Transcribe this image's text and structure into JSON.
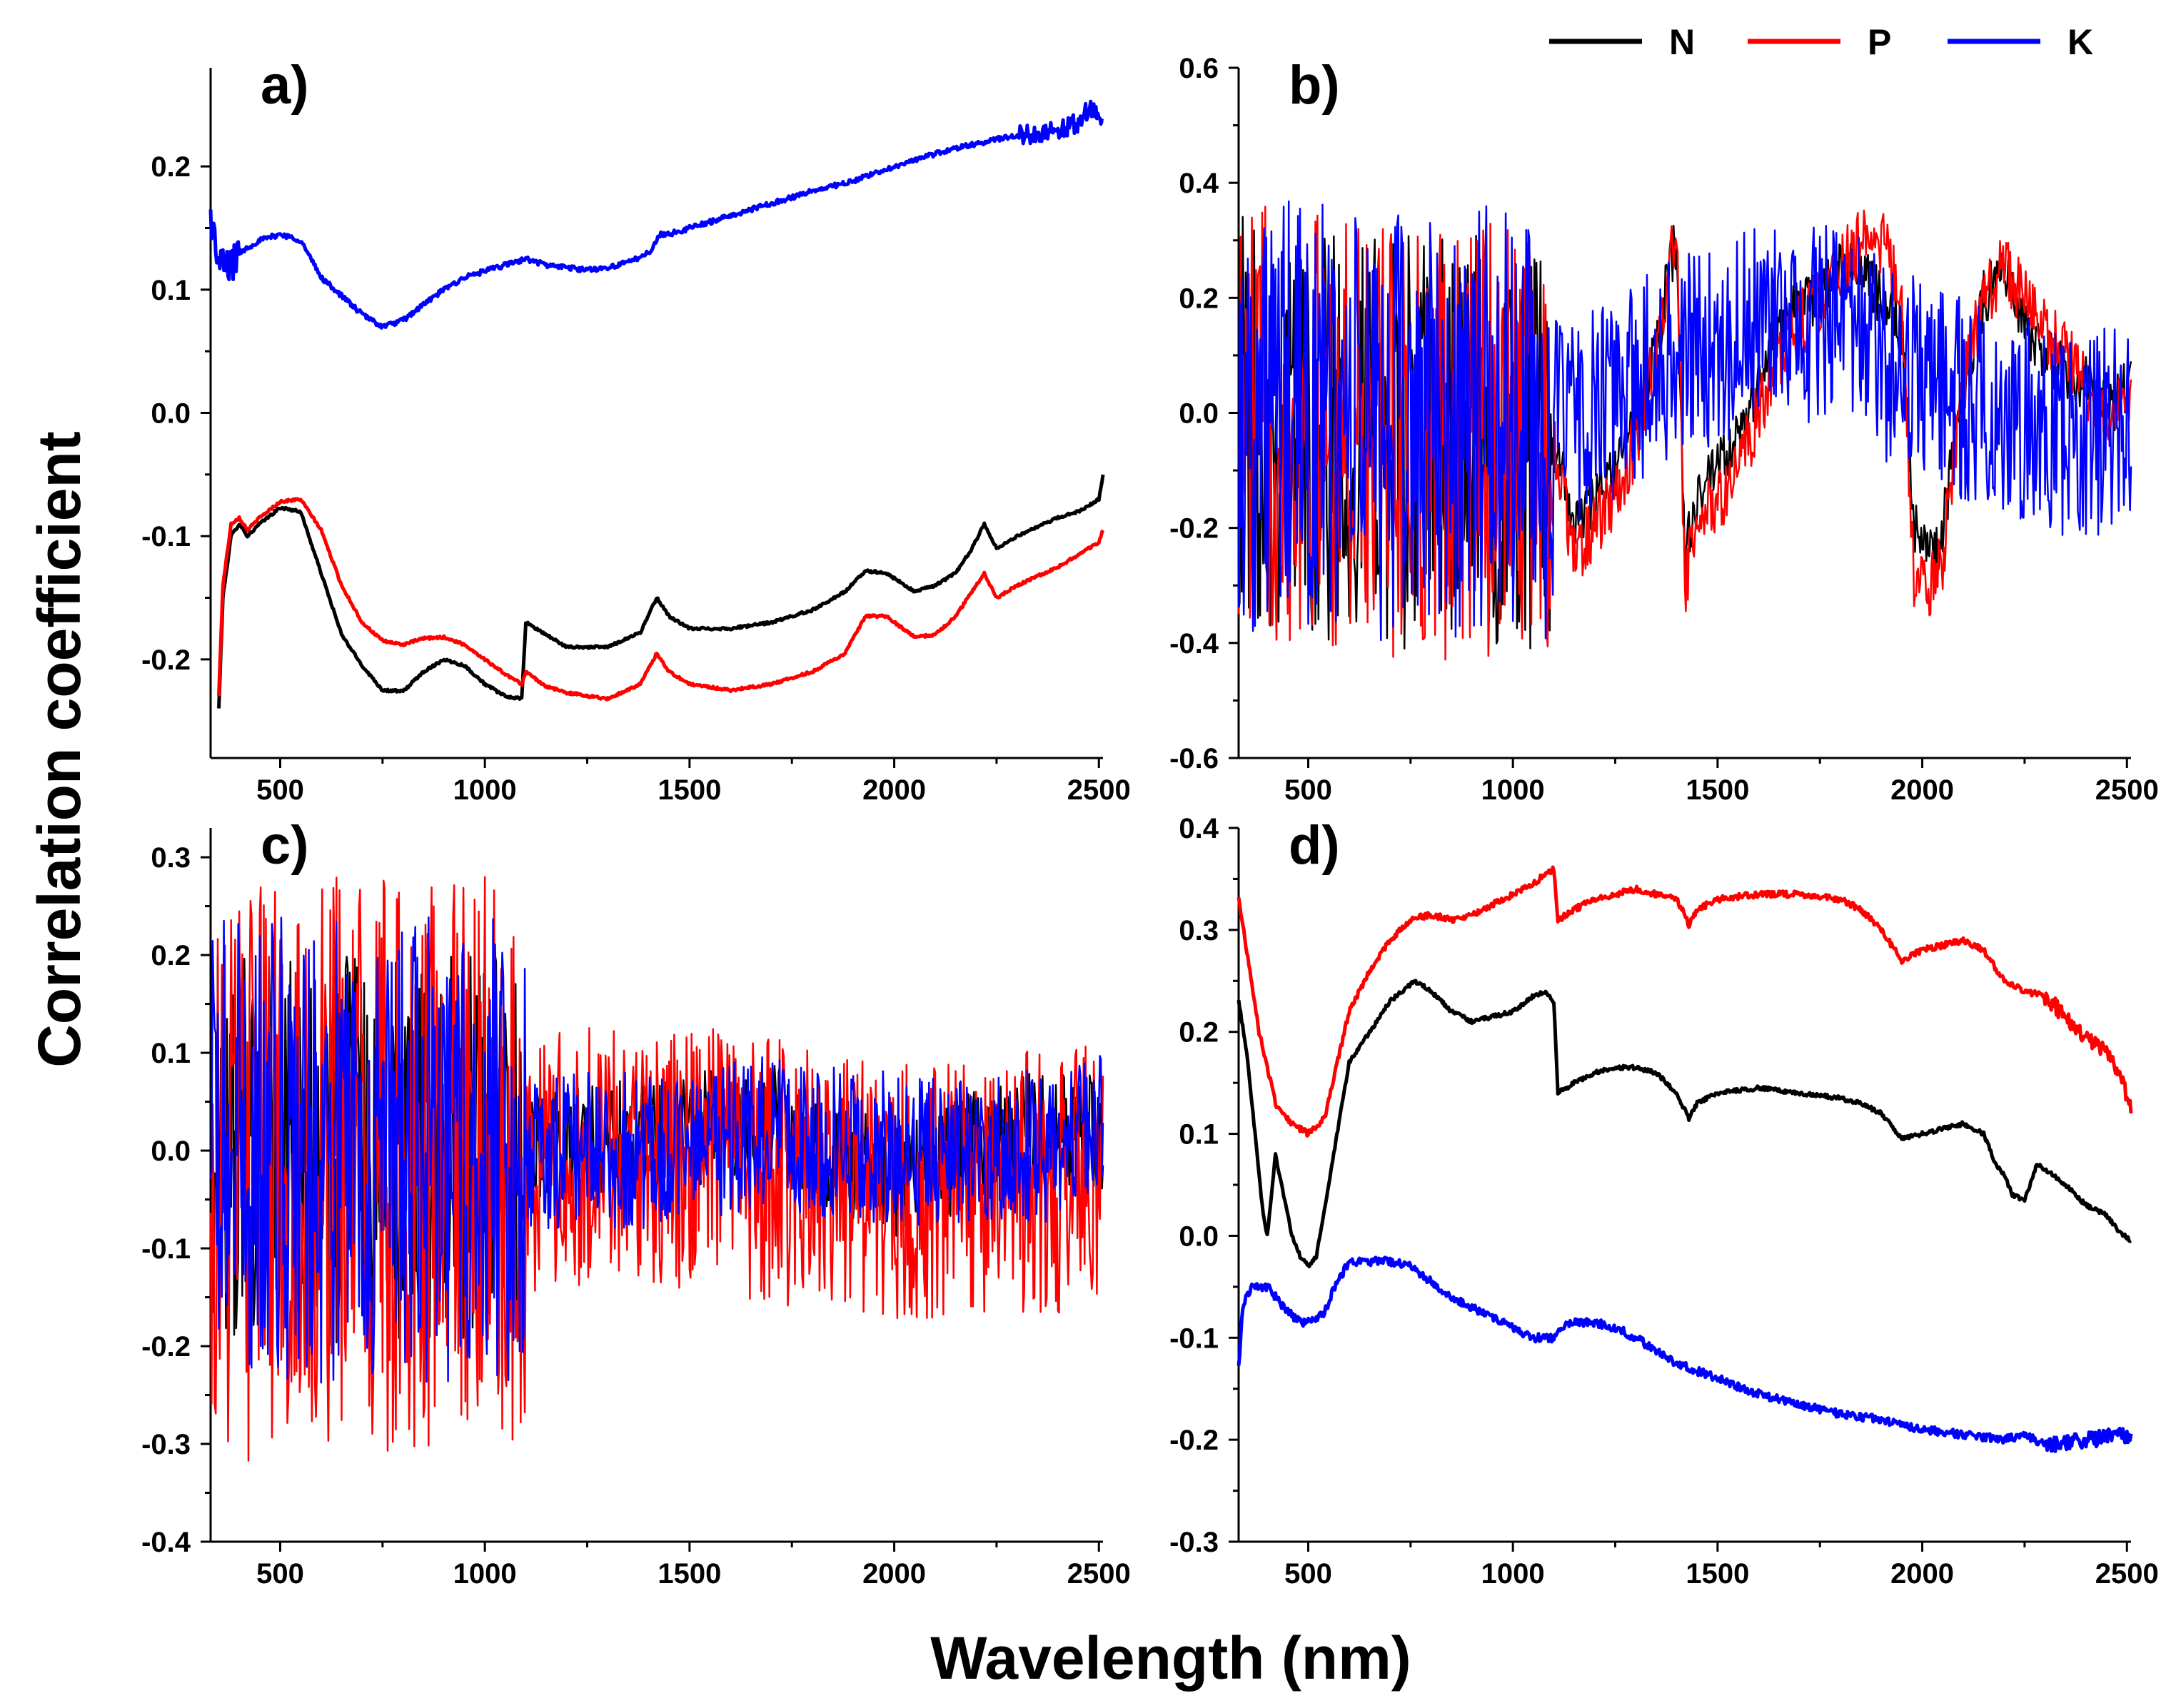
{
  "figure": {
    "ylabel": "Correlation coefficient",
    "xlabel": "Wavelength (nm)",
    "legend": [
      {
        "label": "N",
        "color": "#000000"
      },
      {
        "label": "P",
        "color": "#ff0000"
      },
      {
        "label": "K",
        "color": "#0000ff"
      }
    ]
  },
  "chart_data": [
    {
      "type": "line",
      "panel": "a)",
      "xlim": [
        330,
        2510
      ],
      "ylim": [
        -0.28,
        0.28
      ],
      "xticks": [
        500,
        1000,
        1500,
        2000,
        2500
      ],
      "yticks": [
        -0.2,
        -0.1,
        0.0,
        0.1,
        0.2
      ],
      "ytick_labels": [
        "-0.2",
        "-0.1",
        "0.0",
        "0.1",
        "0.2"
      ],
      "noise": {
        "N": [
          [
            0,
            2510,
            0.001
          ]
        ],
        "P": [
          [
            0,
            2510,
            0.001
          ]
        ],
        "K": [
          [
            330,
            400,
            0.015
          ],
          [
            400,
            2300,
            0.002
          ],
          [
            2300,
            2510,
            0.008
          ]
        ]
      },
      "series": [
        {
          "name": "N",
          "color": "#000000",
          "x": [
            350,
            360,
            380,
            400,
            420,
            450,
            500,
            550,
            600,
            650,
            700,
            750,
            800,
            850,
            900,
            950,
            1000,
            1050,
            1090,
            1100,
            1150,
            1200,
            1300,
            1380,
            1420,
            1450,
            1500,
            1600,
            1700,
            1800,
            1880,
            1930,
            1980,
            2050,
            2100,
            2150,
            2190,
            2220,
            2250,
            2300,
            2400,
            2450,
            2500,
            2510
          ],
          "y": [
            -0.24,
            -0.15,
            -0.1,
            -0.09,
            -0.1,
            -0.09,
            -0.077,
            -0.08,
            -0.13,
            -0.18,
            -0.205,
            -0.225,
            -0.226,
            -0.21,
            -0.2,
            -0.205,
            -0.22,
            -0.23,
            -0.232,
            -0.17,
            -0.18,
            -0.19,
            -0.19,
            -0.178,
            -0.15,
            -0.165,
            -0.175,
            -0.175,
            -0.17,
            -0.16,
            -0.145,
            -0.128,
            -0.13,
            -0.145,
            -0.14,
            -0.13,
            -0.11,
            -0.09,
            -0.11,
            -0.1,
            -0.085,
            -0.08,
            -0.07,
            -0.05
          ]
        },
        {
          "name": "P",
          "color": "#ff0000",
          "x": [
            350,
            360,
            380,
            400,
            420,
            450,
            500,
            550,
            600,
            650,
            700,
            750,
            800,
            850,
            900,
            950,
            1000,
            1050,
            1090,
            1100,
            1150,
            1200,
            1300,
            1380,
            1420,
            1450,
            1500,
            1600,
            1700,
            1800,
            1880,
            1930,
            1980,
            2050,
            2100,
            2150,
            2190,
            2220,
            2250,
            2300,
            2400,
            2450,
            2500,
            2510
          ],
          "y": [
            -0.23,
            -0.14,
            -0.09,
            -0.085,
            -0.095,
            -0.085,
            -0.072,
            -0.07,
            -0.095,
            -0.14,
            -0.17,
            -0.185,
            -0.188,
            -0.183,
            -0.182,
            -0.188,
            -0.2,
            -0.212,
            -0.22,
            -0.21,
            -0.222,
            -0.227,
            -0.232,
            -0.22,
            -0.195,
            -0.21,
            -0.22,
            -0.225,
            -0.22,
            -0.21,
            -0.195,
            -0.165,
            -0.165,
            -0.182,
            -0.18,
            -0.165,
            -0.145,
            -0.13,
            -0.15,
            -0.14,
            -0.125,
            -0.115,
            -0.105,
            -0.095
          ]
        },
        {
          "name": "K",
          "color": "#0000ff",
          "x": [
            330,
            350,
            380,
            400,
            450,
            500,
            550,
            600,
            650,
            700,
            750,
            800,
            850,
            900,
            950,
            1000,
            1050,
            1100,
            1150,
            1200,
            1250,
            1300,
            1350,
            1400,
            1430,
            1450,
            1500,
            1600,
            1700,
            1800,
            1900,
            2000,
            2100,
            2150,
            2200,
            2250,
            2300,
            2400,
            2450,
            2480,
            2510
          ],
          "y": [
            0.16,
            0.12,
            0.12,
            0.13,
            0.14,
            0.145,
            0.14,
            0.11,
            0.095,
            0.08,
            0.07,
            0.075,
            0.088,
            0.1,
            0.11,
            0.115,
            0.12,
            0.125,
            0.12,
            0.118,
            0.116,
            0.118,
            0.122,
            0.13,
            0.145,
            0.145,
            0.15,
            0.16,
            0.17,
            0.18,
            0.188,
            0.2,
            0.21,
            0.215,
            0.218,
            0.222,
            0.225,
            0.23,
            0.235,
            0.25,
            0.23
          ]
        }
      ]
    },
    {
      "type": "line",
      "panel": "b)",
      "xlim": [
        330,
        2510
      ],
      "ylim": [
        -0.6,
        0.6
      ],
      "xticks": [
        500,
        1000,
        1500,
        2000,
        2500
      ],
      "yticks": [
        -0.6,
        -0.4,
        -0.2,
        0.0,
        0.2,
        0.4,
        0.6
      ],
      "ytick_labels": [
        "-0.6",
        "-0.4",
        "-0.2",
        "0.0",
        "0.2",
        "0.4",
        "0.6"
      ],
      "noise": {
        "N": [
          [
            330,
            1100,
            0.36
          ],
          [
            1100,
            2510,
            0.05
          ]
        ],
        "P": [
          [
            330,
            1100,
            0.38
          ],
          [
            1100,
            2510,
            0.06
          ]
        ],
        "K": [
          [
            330,
            1100,
            0.38
          ],
          [
            1100,
            2510,
            0.18
          ]
        ]
      },
      "series": [
        {
          "name": "N",
          "color": "#000000",
          "x": [
            330,
            600,
            900,
            1100,
            1150,
            1200,
            1250,
            1300,
            1350,
            1380,
            1400,
            1420,
            1450,
            1500,
            1550,
            1600,
            1650,
            1700,
            1750,
            1800,
            1850,
            1900,
            1950,
            1980,
            2000,
            2030,
            2050,
            2100,
            2150,
            2200,
            2250,
            2300,
            2400,
            2450,
            2510
          ],
          "y": [
            0.0,
            -0.05,
            -0.05,
            -0.05,
            -0.2,
            -0.15,
            -0.1,
            0.0,
            0.1,
            0.25,
            0.3,
            -0.25,
            -0.15,
            -0.1,
            -0.05,
            0.05,
            0.15,
            0.2,
            0.2,
            0.25,
            0.25,
            0.2,
            0.15,
            -0.2,
            -0.2,
            -0.25,
            -0.2,
            0.05,
            0.2,
            0.25,
            0.15,
            0.1,
            0.05,
            0.0,
            0.05
          ]
        },
        {
          "name": "P",
          "color": "#ff0000",
          "x": [
            330,
            600,
            900,
            1100,
            1150,
            1200,
            1250,
            1300,
            1350,
            1380,
            1400,
            1420,
            1450,
            1500,
            1550,
            1600,
            1650,
            1700,
            1750,
            1800,
            1850,
            1900,
            1950,
            1980,
            2000,
            2030,
            2050,
            2100,
            2150,
            2200,
            2250,
            2300,
            2400,
            2450,
            2510
          ],
          "y": [
            0.0,
            -0.05,
            -0.05,
            -0.05,
            -0.25,
            -0.2,
            -0.15,
            -0.05,
            0.1,
            0.25,
            0.3,
            -0.3,
            -0.2,
            -0.15,
            -0.1,
            0.0,
            0.1,
            0.15,
            0.2,
            0.25,
            0.3,
            0.3,
            0.2,
            -0.3,
            -0.3,
            -0.3,
            -0.25,
            0.05,
            0.2,
            0.25,
            0.2,
            0.15,
            0.05,
            0.0,
            0.05
          ]
        },
        {
          "name": "K",
          "color": "#0000ff",
          "x": [
            330,
            600,
            900,
            1100,
            1200,
            1400,
            1600,
            1800,
            2000,
            2200,
            2400,
            2510
          ],
          "y": [
            0.0,
            -0.02,
            -0.02,
            -0.02,
            0.0,
            0.1,
            0.15,
            0.15,
            0.05,
            0.0,
            -0.05,
            0.0
          ]
        }
      ]
    },
    {
      "type": "line",
      "panel": "c)",
      "xlim": [
        330,
        2510
      ],
      "ylim": [
        -0.4,
        0.33
      ],
      "xticks": [
        500,
        1000,
        1500,
        2000,
        2500
      ],
      "yticks": [
        -0.4,
        -0.3,
        -0.2,
        -0.1,
        0.0,
        0.1,
        0.2,
        0.3
      ],
      "ytick_labels": [
        "-0.4",
        "-0.3",
        "-0.2",
        "-0.1",
        "0.0",
        "0.1",
        "0.2",
        "0.3"
      ],
      "noise": {
        "N": [
          [
            330,
            1100,
            0.2
          ],
          [
            1100,
            2510,
            0.06
          ]
        ],
        "P": [
          [
            330,
            1100,
            0.3
          ],
          [
            1100,
            2510,
            0.14
          ]
        ],
        "K": [
          [
            330,
            1100,
            0.24
          ],
          [
            1100,
            2510,
            0.08
          ]
        ]
      },
      "series": [
        {
          "name": "N",
          "color": "#000000",
          "x": [
            330,
            1100,
            1400,
            1700,
            2000,
            2300,
            2510
          ],
          "y": [
            0.0,
            0.0,
            0.02,
            0.03,
            -0.03,
            0.02,
            0.02
          ]
        },
        {
          "name": "P",
          "color": "#ff0000",
          "x": [
            330,
            1100,
            1400,
            1700,
            2000,
            2300,
            2510
          ],
          "y": [
            -0.02,
            -0.02,
            0.0,
            -0.02,
            -0.04,
            -0.03,
            -0.03
          ]
        },
        {
          "name": "K",
          "color": "#0000ff",
          "x": [
            330,
            1100,
            1400,
            1700,
            2000,
            2300,
            2510
          ],
          "y": [
            0.0,
            0.0,
            0.0,
            0.02,
            0.0,
            0.0,
            0.02
          ]
        }
      ]
    },
    {
      "type": "line",
      "panel": "d)",
      "xlim": [
        330,
        2510
      ],
      "ylim": [
        -0.3,
        0.4
      ],
      "xticks": [
        500,
        1000,
        1500,
        2000,
        2500
      ],
      "yticks": [
        -0.3,
        -0.2,
        -0.1,
        0.0,
        0.1,
        0.2,
        0.3,
        0.4
      ],
      "ytick_labels": [
        "-0.3",
        "-0.2",
        "-0.1",
        "0.0",
        "0.1",
        "0.2",
        "0.3",
        "0.4"
      ],
      "noise": {
        "N": [
          [
            0,
            2510,
            0.002
          ]
        ],
        "P": [
          [
            330,
            2300,
            0.003
          ],
          [
            2300,
            2510,
            0.008
          ]
        ],
        "K": [
          [
            330,
            2300,
            0.004
          ],
          [
            2300,
            2510,
            0.008
          ]
        ]
      },
      "series": [
        {
          "name": "N",
          "color": "#000000",
          "x": [
            330,
            350,
            370,
            390,
            400,
            420,
            440,
            460,
            480,
            500,
            520,
            550,
            600,
            650,
            700,
            760,
            800,
            850,
            900,
            950,
            1000,
            1050,
            1080,
            1100,
            1110,
            1150,
            1200,
            1250,
            1300,
            1350,
            1400,
            1430,
            1450,
            1500,
            1600,
            1700,
            1800,
            1850,
            1900,
            1950,
            2000,
            2050,
            2100,
            2150,
            2180,
            2200,
            2220,
            2250,
            2280,
            2300,
            2350,
            2400,
            2450,
            2480,
            2510
          ],
          "y": [
            0.23,
            0.18,
            0.1,
            0.02,
            0.0,
            0.08,
            0.04,
            0.0,
            -0.02,
            -0.03,
            -0.02,
            0.05,
            0.17,
            0.2,
            0.23,
            0.25,
            0.24,
            0.22,
            0.21,
            0.215,
            0.22,
            0.235,
            0.24,
            0.23,
            0.14,
            0.15,
            0.16,
            0.165,
            0.165,
            0.16,
            0.14,
            0.115,
            0.13,
            0.14,
            0.145,
            0.14,
            0.135,
            0.13,
            0.12,
            0.095,
            0.1,
            0.105,
            0.11,
            0.1,
            0.07,
            0.06,
            0.04,
            0.035,
            0.07,
            0.065,
            0.05,
            0.03,
            0.02,
            0.005,
            -0.005
          ]
        },
        {
          "name": "P",
          "color": "#ff0000",
          "x": [
            330,
            350,
            380,
            420,
            460,
            500,
            540,
            560,
            600,
            650,
            700,
            750,
            800,
            850,
            900,
            950,
            1000,
            1050,
            1080,
            1100,
            1110,
            1150,
            1200,
            1300,
            1400,
            1420,
            1430,
            1450,
            1500,
            1600,
            1700,
            1800,
            1850,
            1900,
            1950,
            2000,
            2050,
            2100,
            2150,
            2200,
            2230,
            2250,
            2300,
            2350,
            2400,
            2450,
            2480,
            2510
          ],
          "y": [
            0.33,
            0.28,
            0.2,
            0.13,
            0.11,
            0.1,
            0.115,
            0.15,
            0.22,
            0.26,
            0.29,
            0.31,
            0.315,
            0.31,
            0.315,
            0.325,
            0.335,
            0.345,
            0.355,
            0.36,
            0.31,
            0.32,
            0.33,
            0.34,
            0.33,
            0.315,
            0.305,
            0.32,
            0.33,
            0.335,
            0.335,
            0.33,
            0.32,
            0.3,
            0.27,
            0.28,
            0.285,
            0.29,
            0.28,
            0.25,
            0.245,
            0.24,
            0.235,
            0.215,
            0.195,
            0.18,
            0.16,
            0.125
          ]
        },
        {
          "name": "K",
          "color": "#0000ff",
          "x": [
            330,
            340,
            360,
            400,
            440,
            480,
            500,
            540,
            560,
            600,
            650,
            700,
            750,
            800,
            850,
            900,
            950,
            1000,
            1050,
            1100,
            1110,
            1150,
            1200,
            1250,
            1300,
            1400,
            1500,
            1600,
            1700,
            1800,
            1900,
            2000,
            2100,
            2200,
            2250,
            2300,
            2400,
            2500,
            2510
          ],
          "y": [
            -0.13,
            -0.07,
            -0.05,
            -0.05,
            -0.07,
            -0.085,
            -0.085,
            -0.075,
            -0.055,
            -0.025,
            -0.025,
            -0.025,
            -0.03,
            -0.045,
            -0.06,
            -0.07,
            -0.08,
            -0.09,
            -0.1,
            -0.1,
            -0.09,
            -0.085,
            -0.085,
            -0.09,
            -0.1,
            -0.125,
            -0.14,
            -0.155,
            -0.165,
            -0.175,
            -0.18,
            -0.19,
            -0.195,
            -0.2,
            -0.195,
            -0.205,
            -0.2,
            -0.195,
            -0.2
          ]
        }
      ]
    }
  ]
}
